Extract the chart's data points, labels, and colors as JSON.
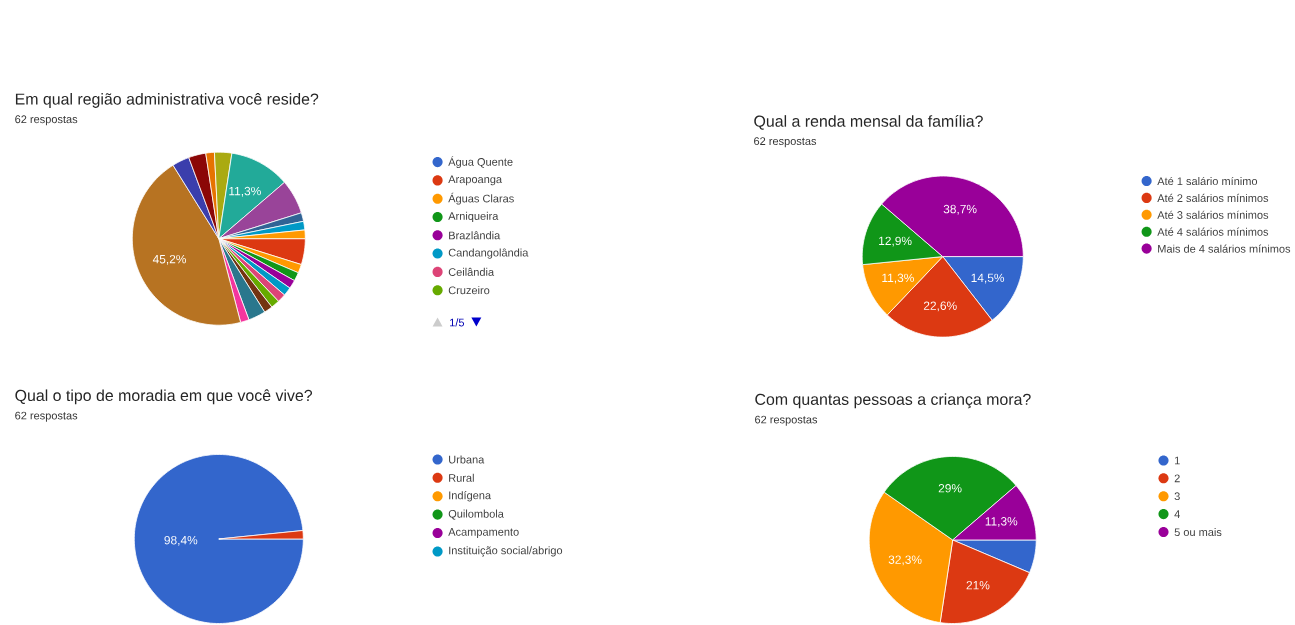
{
  "chart_data": [
    {
      "type": "pie",
      "title": "Em qual região administrativa você reside?",
      "subtitle": "62 respostas",
      "categories": [
        "Água Quente",
        "Arapoanga",
        "Águas Claras",
        "Arniqueira",
        "Brazlândia",
        "Candangolândia",
        "Ceilândia",
        "Cruzeiro",
        null,
        null,
        null,
        null,
        null,
        null,
        null,
        null,
        null,
        null,
        null,
        null,
        null
      ],
      "values": [
        0,
        4.84,
        1.61,
        1.61,
        1.61,
        1.61,
        1.61,
        1.61,
        1.61,
        3.23,
        1.61,
        45.2,
        3.23,
        3.23,
        1.61,
        3.23,
        11.3,
        6.45,
        1.61,
        1.61,
        1.61
      ],
      "colors": [
        "#3366cc",
        "#dc3912",
        "#ff9900",
        "#109618",
        "#990099",
        "#0099c6",
        "#dd4477",
        "#66aa00",
        "#743411",
        "#2a778d",
        "#f4359e",
        "#b77322",
        "#3b3eac",
        "#8b0707",
        "#e67300",
        "#aaaa11",
        "#22aa99",
        "#994499",
        "#316395",
        "#0099c6",
        "#ff9900"
      ],
      "value_labels": [
        null,
        null,
        null,
        null,
        null,
        null,
        null,
        null,
        null,
        null,
        null,
        "45,2%",
        null,
        null,
        null,
        null,
        "11,3%",
        null,
        null,
        null,
        null
      ],
      "legend": "right",
      "annotations": [
        "1/5"
      ]
    },
    {
      "type": "pie",
      "title": "Qual a renda mensal da família?",
      "subtitle": "62 respostas",
      "categories": [
        "Até 1 salário mínimo",
        "Até 2 salários mínimos",
        "Até 3 salários mínimos",
        "Até 4 salários mínimos",
        "Mais de 4 salários mínimos"
      ],
      "values": [
        14.5,
        22.6,
        11.3,
        12.9,
        38.7
      ],
      "colors": [
        "#3366cc",
        "#dc3912",
        "#ff9900",
        "#109618",
        "#990099"
      ],
      "value_labels": [
        "14,5%",
        "22,6%",
        "11,3%",
        "12,9%",
        "38,7%"
      ],
      "legend": "right"
    },
    {
      "type": "pie",
      "title": "Qual o tipo de moradia em que você vive?",
      "subtitle": "62 respostas",
      "categories": [
        "Urbana",
        "Rural",
        "Indígena",
        "Quilombola",
        "Acampamento",
        "Instituição social/abrigo"
      ],
      "values": [
        98.4,
        1.6,
        0,
        0,
        0,
        0
      ],
      "colors": [
        "#3366cc",
        "#dc3912",
        "#ff9900",
        "#109618",
        "#990099",
        "#0099c6"
      ],
      "value_labels": [
        "98,4%",
        null,
        null,
        null,
        null,
        null
      ],
      "legend": "right"
    },
    {
      "type": "pie",
      "title": "Com quantas pessoas a criança mora?",
      "subtitle": "62 respostas",
      "categories": [
        "1",
        "2",
        "3",
        "4",
        "5 ou mais"
      ],
      "values": [
        6.4,
        21,
        32.3,
        29,
        11.3
      ],
      "colors": [
        "#3366cc",
        "#dc3912",
        "#ff9900",
        "#109618",
        "#990099"
      ],
      "value_labels": [
        null,
        "21%",
        "32,3%",
        "29%",
        "11,3%"
      ],
      "legend": "right"
    }
  ]
}
